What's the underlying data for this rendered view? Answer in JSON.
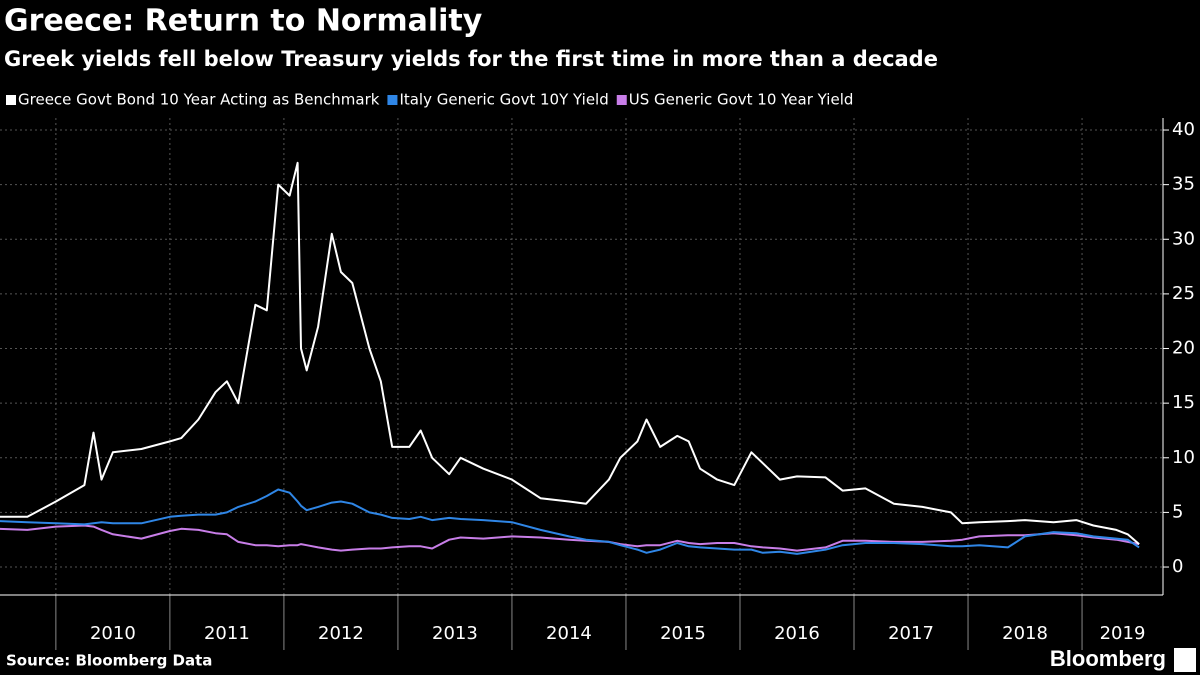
{
  "chart_data": {
    "type": "line",
    "title": "Greece: Return to Normality",
    "subtitle": "Greek yields fell below Treasury yields for the first time in more than a decade",
    "source": "Source: Bloomberg Data",
    "brand": "Bloomberg",
    "legend": "top-left",
    "grid": true,
    "x": [
      2009.5,
      2009.75,
      2010.0,
      2010.25,
      2010.33,
      2010.4,
      2010.5,
      2010.75,
      2011.0,
      2011.1,
      2011.25,
      2011.4,
      2011.5,
      2011.6,
      2011.75,
      2011.85,
      2011.95,
      2012.05,
      2012.12,
      2012.15,
      2012.2,
      2012.3,
      2012.42,
      2012.5,
      2012.6,
      2012.75,
      2012.85,
      2012.95,
      2013.1,
      2013.2,
      2013.3,
      2013.45,
      2013.55,
      2013.75,
      2014.0,
      2014.25,
      2014.5,
      2014.65,
      2014.85,
      2014.95,
      2015.1,
      2015.18,
      2015.3,
      2015.45,
      2015.55,
      2015.65,
      2015.8,
      2015.95,
      2016.1,
      2016.2,
      2016.35,
      2016.5,
      2016.75,
      2016.9,
      2017.1,
      2017.35,
      2017.6,
      2017.85,
      2017.95,
      2018.1,
      2018.35,
      2018.5,
      2018.75,
      2018.95,
      2019.1,
      2019.3,
      2019.4,
      2019.5
    ],
    "series": [
      {
        "name": "Greece Govt Bond 10 Year Acting as Benchmark",
        "color": "#ffffff",
        "values": [
          4.6,
          4.6,
          6.0,
          7.5,
          12.3,
          8.0,
          10.5,
          10.8,
          11.5,
          11.8,
          13.5,
          16.0,
          17.0,
          15.0,
          24.0,
          23.5,
          35.0,
          34.0,
          37.0,
          20.0,
          18.0,
          22.0,
          30.5,
          27.0,
          26.0,
          20.0,
          17.0,
          11.0,
          11.0,
          12.5,
          10.0,
          8.5,
          10.0,
          9.0,
          8.0,
          6.3,
          6.0,
          5.8,
          8.0,
          10.0,
          11.5,
          13.5,
          11.0,
          12.0,
          11.5,
          9.0,
          8.0,
          7.5,
          10.5,
          9.5,
          8.0,
          8.3,
          8.2,
          7.0,
          7.2,
          5.8,
          5.5,
          5.0,
          4.0,
          4.1,
          4.2,
          4.3,
          4.1,
          4.3,
          3.8,
          3.4,
          3.0,
          2.1
        ]
      },
      {
        "name": "Italy Generic Govt 10Y Yield",
        "color": "#2f86e6",
        "values": [
          4.2,
          4.1,
          4.0,
          3.9,
          4.0,
          4.1,
          4.0,
          4.0,
          4.6,
          4.7,
          4.8,
          4.8,
          5.0,
          5.5,
          6.0,
          6.5,
          7.1,
          6.8,
          6.0,
          5.6,
          5.2,
          5.5,
          5.9,
          6.0,
          5.8,
          5.0,
          4.8,
          4.5,
          4.4,
          4.6,
          4.3,
          4.5,
          4.4,
          4.3,
          4.1,
          3.4,
          2.8,
          2.5,
          2.3,
          2.0,
          1.6,
          1.3,
          1.6,
          2.2,
          1.9,
          1.8,
          1.7,
          1.6,
          1.6,
          1.3,
          1.4,
          1.2,
          1.6,
          2.0,
          2.2,
          2.2,
          2.1,
          1.9,
          1.9,
          2.0,
          1.8,
          2.8,
          3.2,
          3.1,
          2.8,
          2.6,
          2.5,
          1.8
        ]
      },
      {
        "name": "US Generic Govt 10 Year Yield",
        "color": "#c87ee8",
        "values": [
          3.5,
          3.4,
          3.7,
          3.8,
          3.7,
          3.4,
          3.0,
          2.6,
          3.3,
          3.5,
          3.4,
          3.1,
          3.0,
          2.3,
          2.0,
          2.0,
          1.9,
          2.0,
          2.0,
          2.1,
          2.0,
          1.8,
          1.6,
          1.5,
          1.6,
          1.7,
          1.7,
          1.8,
          1.9,
          1.9,
          1.7,
          2.5,
          2.7,
          2.6,
          2.8,
          2.7,
          2.5,
          2.4,
          2.3,
          2.1,
          1.9,
          2.0,
          2.0,
          2.4,
          2.2,
          2.1,
          2.2,
          2.2,
          1.9,
          1.8,
          1.7,
          1.5,
          1.8,
          2.4,
          2.4,
          2.3,
          2.3,
          2.4,
          2.5,
          2.8,
          2.9,
          2.9,
          3.1,
          2.9,
          2.7,
          2.5,
          2.3,
          2.1
        ]
      }
    ],
    "xlim": [
      2009.51,
      2019.71
    ],
    "xticks": [
      2010,
      2011,
      2012,
      2013,
      2014,
      2015,
      2016,
      2017,
      2018,
      2019
    ],
    "ylim": [
      -2.56,
      41.1
    ],
    "yticks": [
      0,
      5,
      10,
      15,
      20,
      25,
      30,
      35,
      40
    ]
  }
}
